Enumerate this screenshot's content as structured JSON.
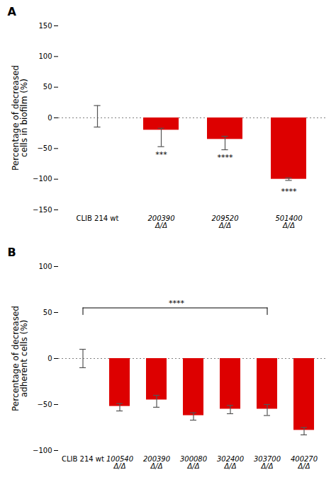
{
  "chart_data": [
    {
      "type": "bar",
      "title": "A",
      "categories": [
        "CLIB 214 wt",
        "200390 Δ/Δ",
        "209520 Δ/Δ",
        "501400 Δ/Δ"
      ],
      "values": [
        0,
        -20,
        -35,
        -100
      ],
      "errors_neg": [
        15,
        27,
        17,
        2
      ],
      "errors_pos": [
        20,
        3,
        5,
        2
      ],
      "colors": [
        "#0000cc",
        "#dd0000",
        "#dd0000",
        "#dd0000"
      ],
      "ylim": [
        -150,
        150
      ],
      "yticks": [
        -150,
        -100,
        -50,
        0,
        50,
        100,
        150
      ],
      "ylabel": "Percentage of decreased\ncells in biofilm (%)",
      "grid": false,
      "annotations": [
        {
          "x": "200390 Δ/Δ",
          "y": -55,
          "text": "***"
        },
        {
          "x": "209520 Δ/Δ",
          "y": -60,
          "text": "****"
        },
        {
          "x": "501400 Δ/Δ",
          "y": -115,
          "text": "****"
        }
      ]
    },
    {
      "type": "bar",
      "title": "B",
      "categories": [
        "CLIB 214 wt",
        "100540 Δ/Δ",
        "200390 Δ/Δ",
        "300080 Δ/Δ",
        "302400 Δ/Δ",
        "303700 Δ/Δ",
        "400270 Δ/Δ"
      ],
      "values": [
        0,
        -52,
        -45,
        -62,
        -55,
        -55,
        -78
      ],
      "errors_neg": [
        10,
        5,
        8,
        5,
        5,
        7,
        5
      ],
      "errors_pos": [
        10,
        3,
        5,
        3,
        4,
        5,
        3
      ],
      "colors": [
        "#0000cc",
        "#dd0000",
        "#dd0000",
        "#dd0000",
        "#dd0000",
        "#dd0000",
        "#dd0000"
      ],
      "ylim": [
        -100,
        100
      ],
      "yticks": [
        -100,
        -50,
        0,
        50,
        100
      ],
      "ylabel": "Percentage of decreased\nadherent cells (%)",
      "grid": false,
      "annotations": [
        {
          "type": "bracket",
          "x1": "CLIB 214 wt",
          "x2": "303700 Δ/Δ",
          "y": 55,
          "text": "****"
        }
      ]
    }
  ]
}
